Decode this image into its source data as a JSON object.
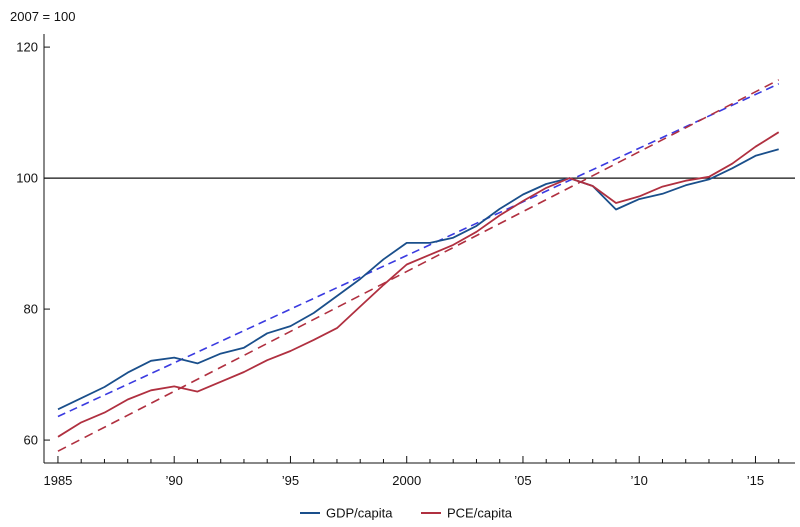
{
  "chart_data": {
    "type": "line",
    "unit_label": "2007 = 100",
    "x_ticks": [
      {
        "x": 1985,
        "label": "1985"
      },
      {
        "x": 1990,
        "label": "’90"
      },
      {
        "x": 1995,
        "label": "’95"
      },
      {
        "x": 2000,
        "label": "2000"
      },
      {
        "x": 2005,
        "label": "’05"
      },
      {
        "x": 2010,
        "label": "’10"
      },
      {
        "x": 2015,
        "label": "’15"
      }
    ],
    "y_ticks": [
      {
        "y": 60,
        "label": "60"
      },
      {
        "y": 80,
        "label": "80"
      },
      {
        "y": 100,
        "label": "100"
      },
      {
        "y": 120,
        "label": "120"
      }
    ],
    "xlim": [
      1984.4,
      2016.7
    ],
    "ylim": [
      56.5,
      122
    ],
    "reference_line": 100,
    "x": [
      1985,
      1986,
      1987,
      1988,
      1989,
      1990,
      1991,
      1992,
      1993,
      1994,
      1995,
      1996,
      1997,
      1998,
      1999,
      2000,
      2001,
      2002,
      2003,
      2004,
      2005,
      2006,
      2007,
      2008,
      2009,
      2010,
      2011,
      2012,
      2013,
      2014,
      2015,
      2016
    ],
    "series": [
      {
        "name": "GDP/capita",
        "color": "#1a4f8b",
        "values": [
          64.7,
          66.4,
          68.1,
          70.3,
          72.1,
          72.6,
          71.7,
          73.2,
          74.1,
          76.3,
          77.4,
          79.4,
          82.0,
          84.6,
          87.6,
          90.1,
          90.1,
          90.9,
          92.7,
          95.3,
          97.5,
          99.1,
          100.0,
          98.8,
          95.2,
          96.8,
          97.6,
          98.9,
          99.8,
          101.5,
          103.4,
          104.4
        ]
      },
      {
        "name": "PCE/capita",
        "color": "#b03040",
        "values": [
          60.5,
          62.7,
          64.2,
          66.2,
          67.6,
          68.2,
          67.4,
          68.9,
          70.4,
          72.2,
          73.6,
          75.3,
          77.1,
          80.4,
          83.7,
          86.8,
          88.3,
          89.8,
          91.8,
          94.3,
          96.5,
          98.5,
          100.0,
          98.8,
          96.2,
          97.2,
          98.7,
          99.6,
          100.2,
          102.2,
          104.8,
          107.0
        ]
      }
    ],
    "trend_lines": [
      {
        "series": "GDP/capita",
        "color": "#3a3ae0",
        "x": [
          1985,
          2016
        ],
        "values": [
          63.6,
          114.4
        ]
      },
      {
        "series": "PCE/capita",
        "color": "#b03040",
        "x": [
          1985,
          2016
        ],
        "values": [
          58.3,
          115.0
        ]
      }
    ],
    "legend": {
      "position": "bottom-center"
    }
  }
}
